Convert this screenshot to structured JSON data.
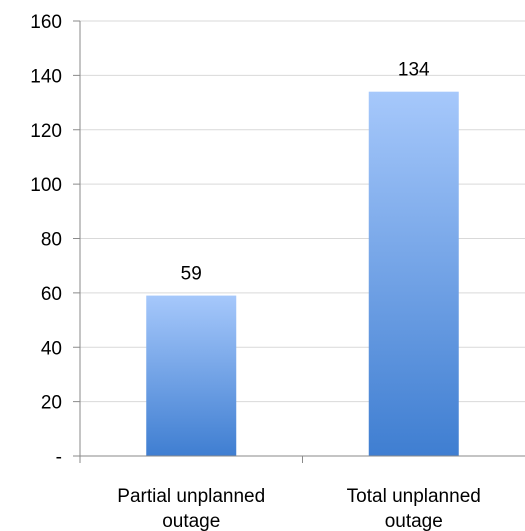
{
  "chart_data": {
    "type": "bar",
    "categories": [
      [
        "Partial unplanned",
        "outage"
      ],
      [
        "Total unplanned",
        "outage"
      ]
    ],
    "values": [
      59,
      134
    ],
    "data_labels": [
      "59",
      "134"
    ],
    "ylim": [
      0,
      160
    ],
    "yticks": [
      0,
      20,
      40,
      60,
      80,
      100,
      120,
      140,
      160
    ],
    "ytick_labels": [
      "-",
      "20",
      "40",
      "60",
      "80",
      "100",
      "120",
      "140",
      "160"
    ],
    "grid": true,
    "legend": "none",
    "bar_gradient": {
      "top": "#a6c8fb",
      "bottom": "#3f7ed1"
    },
    "axis_color": "#8a8a8a",
    "grid_color": "#d9d9d9"
  }
}
